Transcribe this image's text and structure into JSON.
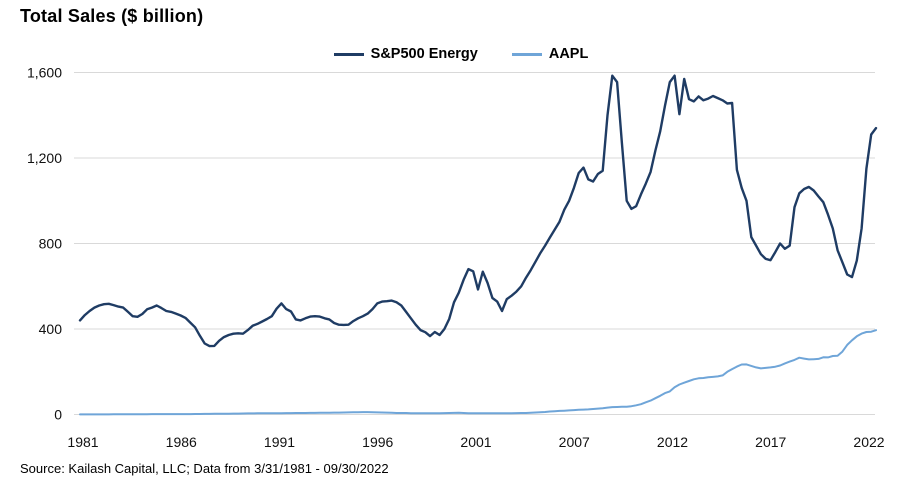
{
  "title": "Total Sales ($ billion)",
  "source": "Source: Kailash Capital, LLC; Data from 3/31/1981 - 09/30/2022",
  "legend": [
    {
      "label": "S&P500 Energy",
      "color": "#1F3C64"
    },
    {
      "label": "AAPL",
      "color": "#6FA5D8"
    }
  ],
  "chart_data": {
    "type": "line",
    "title": "Total Sales ($ billion)",
    "subtitle": "",
    "x_unit": "quarterly categories from 1981Q1 to 2022Q3",
    "x_tick_labels": [
      "1981",
      "1986",
      "1991",
      "1996",
      "2001",
      "2007",
      "2012",
      "2017",
      "2022"
    ],
    "y_tick_values": [
      0,
      400,
      800,
      1200,
      1600
    ],
    "y_tick_labels": [
      "0",
      "400",
      "800",
      "1,200",
      "1,600"
    ],
    "ylim": [
      0,
      1600
    ],
    "grid": "horizontal-only",
    "grid_color": "#D9D9D9",
    "legend_position": "top-center",
    "series": [
      {
        "name": "S&P500 Energy",
        "color": "#1F3C64",
        "values": [
          440,
          465,
          484,
          500,
          510,
          516,
          518,
          512,
          505,
          500,
          480,
          460,
          457,
          470,
          492,
          500,
          510,
          498,
          484,
          480,
          472,
          463,
          452,
          430,
          408,
          368,
          332,
          320,
          321,
          345,
          362,
          372,
          378,
          380,
          378,
          395,
          415,
          424,
          435,
          447,
          460,
          495,
          520,
          493,
          482,
          445,
          440,
          450,
          458,
          460,
          458,
          450,
          445,
          428,
          420,
          419,
          420,
          437,
          450,
          460,
          472,
          493,
          520,
          528,
          530,
          533,
          525,
          510,
          480,
          450,
          420,
          395,
          385,
          367,
          386,
          372,
          400,
          447,
          525,
          570,
          630,
          680,
          670,
          585,
          668,
          615,
          545,
          528,
          484,
          540,
          556,
          575,
          600,
          640,
          675,
          715,
          755,
          790,
          828,
          865,
          902,
          958,
          1000,
          1060,
          1130,
          1155,
          1100,
          1090,
          1125,
          1140,
          1400,
          1585,
          1555,
          1270,
          1000,
          962,
          975,
          1030,
          1080,
          1135,
          1235,
          1325,
          1445,
          1555,
          1585,
          1405,
          1570,
          1475,
          1465,
          1488,
          1470,
          1478,
          1490,
          1480,
          1470,
          1455,
          1458,
          1145,
          1060,
          1000,
          830,
          790,
          750,
          728,
          722,
          760,
          800,
          775,
          790,
          970,
          1035,
          1055,
          1065,
          1048,
          1020,
          993,
          935,
          870,
          768,
          712,
          655,
          643,
          720,
          870,
          1150,
          1310,
          1340
        ]
      },
      {
        "name": "AAPL",
        "color": "#6FA5D8",
        "values": [
          0.3,
          0.4,
          0.4,
          0.5,
          0.6,
          0.7,
          0.7,
          0.8,
          0.9,
          1.0,
          1.1,
          1.2,
          1.4,
          1.5,
          1.6,
          1.7,
          1.8,
          1.9,
          1.9,
          1.9,
          1.9,
          1.9,
          2.0,
          2.1,
          2.3,
          2.5,
          2.7,
          2.9,
          3.1,
          3.4,
          3.6,
          3.9,
          4.2,
          4.4,
          4.7,
          5.0,
          5.2,
          5.4,
          5.5,
          5.6,
          5.8,
          6.0,
          6.2,
          6.4,
          6.6,
          6.8,
          7.0,
          7.1,
          7.3,
          7.6,
          7.9,
          8.0,
          8.3,
          8.7,
          9.0,
          9.2,
          9.6,
          10.2,
          10.8,
          11.1,
          11.0,
          10.5,
          9.8,
          9.5,
          8.8,
          8.0,
          7.1,
          7.0,
          6.8,
          6.3,
          5.9,
          5.9,
          5.9,
          6.0,
          6.1,
          6.3,
          6.7,
          7.1,
          7.5,
          7.9,
          7.1,
          6.2,
          5.4,
          5.4,
          5.5,
          5.6,
          5.7,
          5.8,
          5.9,
          6.0,
          6.2,
          6.5,
          6.8,
          7.2,
          8.3,
          9.4,
          10.3,
          11.6,
          13.9,
          15.6,
          16.9,
          17.8,
          19.3,
          20.6,
          21.9,
          22.9,
          24.0,
          25.7,
          27.5,
          29.3,
          32.5,
          34.6,
          35.3,
          36.1,
          36.5,
          39.0,
          42.9,
          48.0,
          57.0,
          65.2,
          76.3,
          87.4,
          100.3,
          108.2,
          127.8,
          140.2,
          148.8,
          156.5,
          164.7,
          169.4,
          170.9,
          174.0,
          176.0,
          178.1,
          182.8,
          199.8,
          212.2,
          224.3,
          233.7,
          234.4,
          227.5,
          220.3,
          215.6,
          218.1,
          220.5,
          223.5,
          229.2,
          239.2,
          247.4,
          255.3,
          265.6,
          261.7,
          258.0,
          258.5,
          260.2,
          267.7,
          267.3,
          273.9,
          274.5,
          294.1,
          325.4,
          347.2,
          365.8,
          378.3,
          386.0,
          387.5,
          394.3
        ]
      }
    ]
  }
}
